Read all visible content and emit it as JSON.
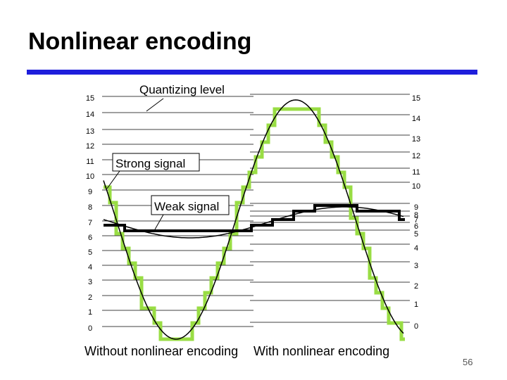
{
  "header": {
    "title": "Nonlinear encoding"
  },
  "diagram": {
    "quantizing_label": "Quantizing level",
    "strong_label": "Strong signal",
    "weak_label": "Weak signal",
    "left_levels": [
      15,
      14,
      13,
      12,
      11,
      10,
      9,
      8,
      7,
      6,
      5,
      4,
      3,
      2,
      1,
      0
    ],
    "right_levels": [
      15,
      14,
      13,
      12,
      11,
      10,
      9,
      8,
      7,
      6,
      5,
      4,
      3,
      2,
      1,
      0
    ],
    "left_caption": "Without nonlinear encoding",
    "right_caption": "With nonlinear encoding"
  },
  "footer": {
    "page": "56"
  }
}
